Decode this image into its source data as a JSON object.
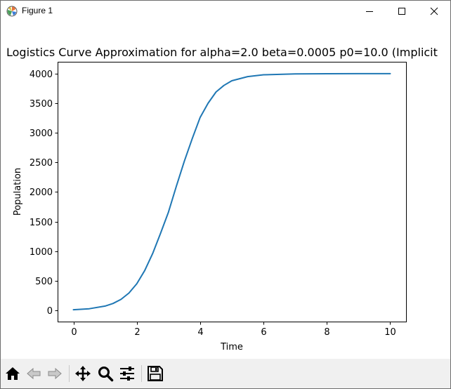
{
  "window": {
    "title": "Figure 1",
    "icons": {
      "app": "matplotlib-icon",
      "minimize": "minimize-icon",
      "maximize": "maximize-icon",
      "close": "close-icon"
    }
  },
  "toolbar": {
    "buttons": [
      {
        "name": "home",
        "icon": "home-icon"
      },
      {
        "name": "back",
        "icon": "back-arrow-icon"
      },
      {
        "name": "forward",
        "icon": "forward-arrow-icon"
      },
      {
        "name": "pan",
        "icon": "move-icon"
      },
      {
        "name": "zoom",
        "icon": "magnifier-icon"
      },
      {
        "name": "subplots",
        "icon": "sliders-icon"
      },
      {
        "name": "save",
        "icon": "floppy-disk-icon"
      }
    ]
  },
  "chart_data": {
    "type": "line",
    "title": "Logistics Curve Approximation for alpha=2.0 beta=0.0005 p0=10.0 (Implicit",
    "xlabel": "Time",
    "ylabel": "Population",
    "xlim": [
      -0.5,
      10.5
    ],
    "ylim": [
      -190,
      4200
    ],
    "xticks": [
      0,
      2,
      4,
      6,
      8,
      10
    ],
    "yticks": [
      0,
      500,
      1000,
      1500,
      2000,
      2500,
      3000,
      3500,
      4000
    ],
    "grid": false,
    "line_color": "#1f77b4",
    "series": [
      {
        "x": [
          0,
          0.5,
          1,
          1.25,
          1.5,
          1.75,
          2,
          2.25,
          2.5,
          2.75,
          3,
          3.25,
          3.5,
          3.75,
          4,
          4.25,
          4.5,
          4.75,
          5,
          5.5,
          6,
          7,
          8,
          9,
          10
        ],
        "y": [
          10,
          27,
          72,
          116,
          185,
          292,
          450,
          672,
          960,
          1300,
          1660,
          2100,
          2520,
          2900,
          3260,
          3500,
          3690,
          3800,
          3880,
          3950,
          3980,
          3995,
          3998,
          3999,
          4000
        ]
      }
    ]
  }
}
